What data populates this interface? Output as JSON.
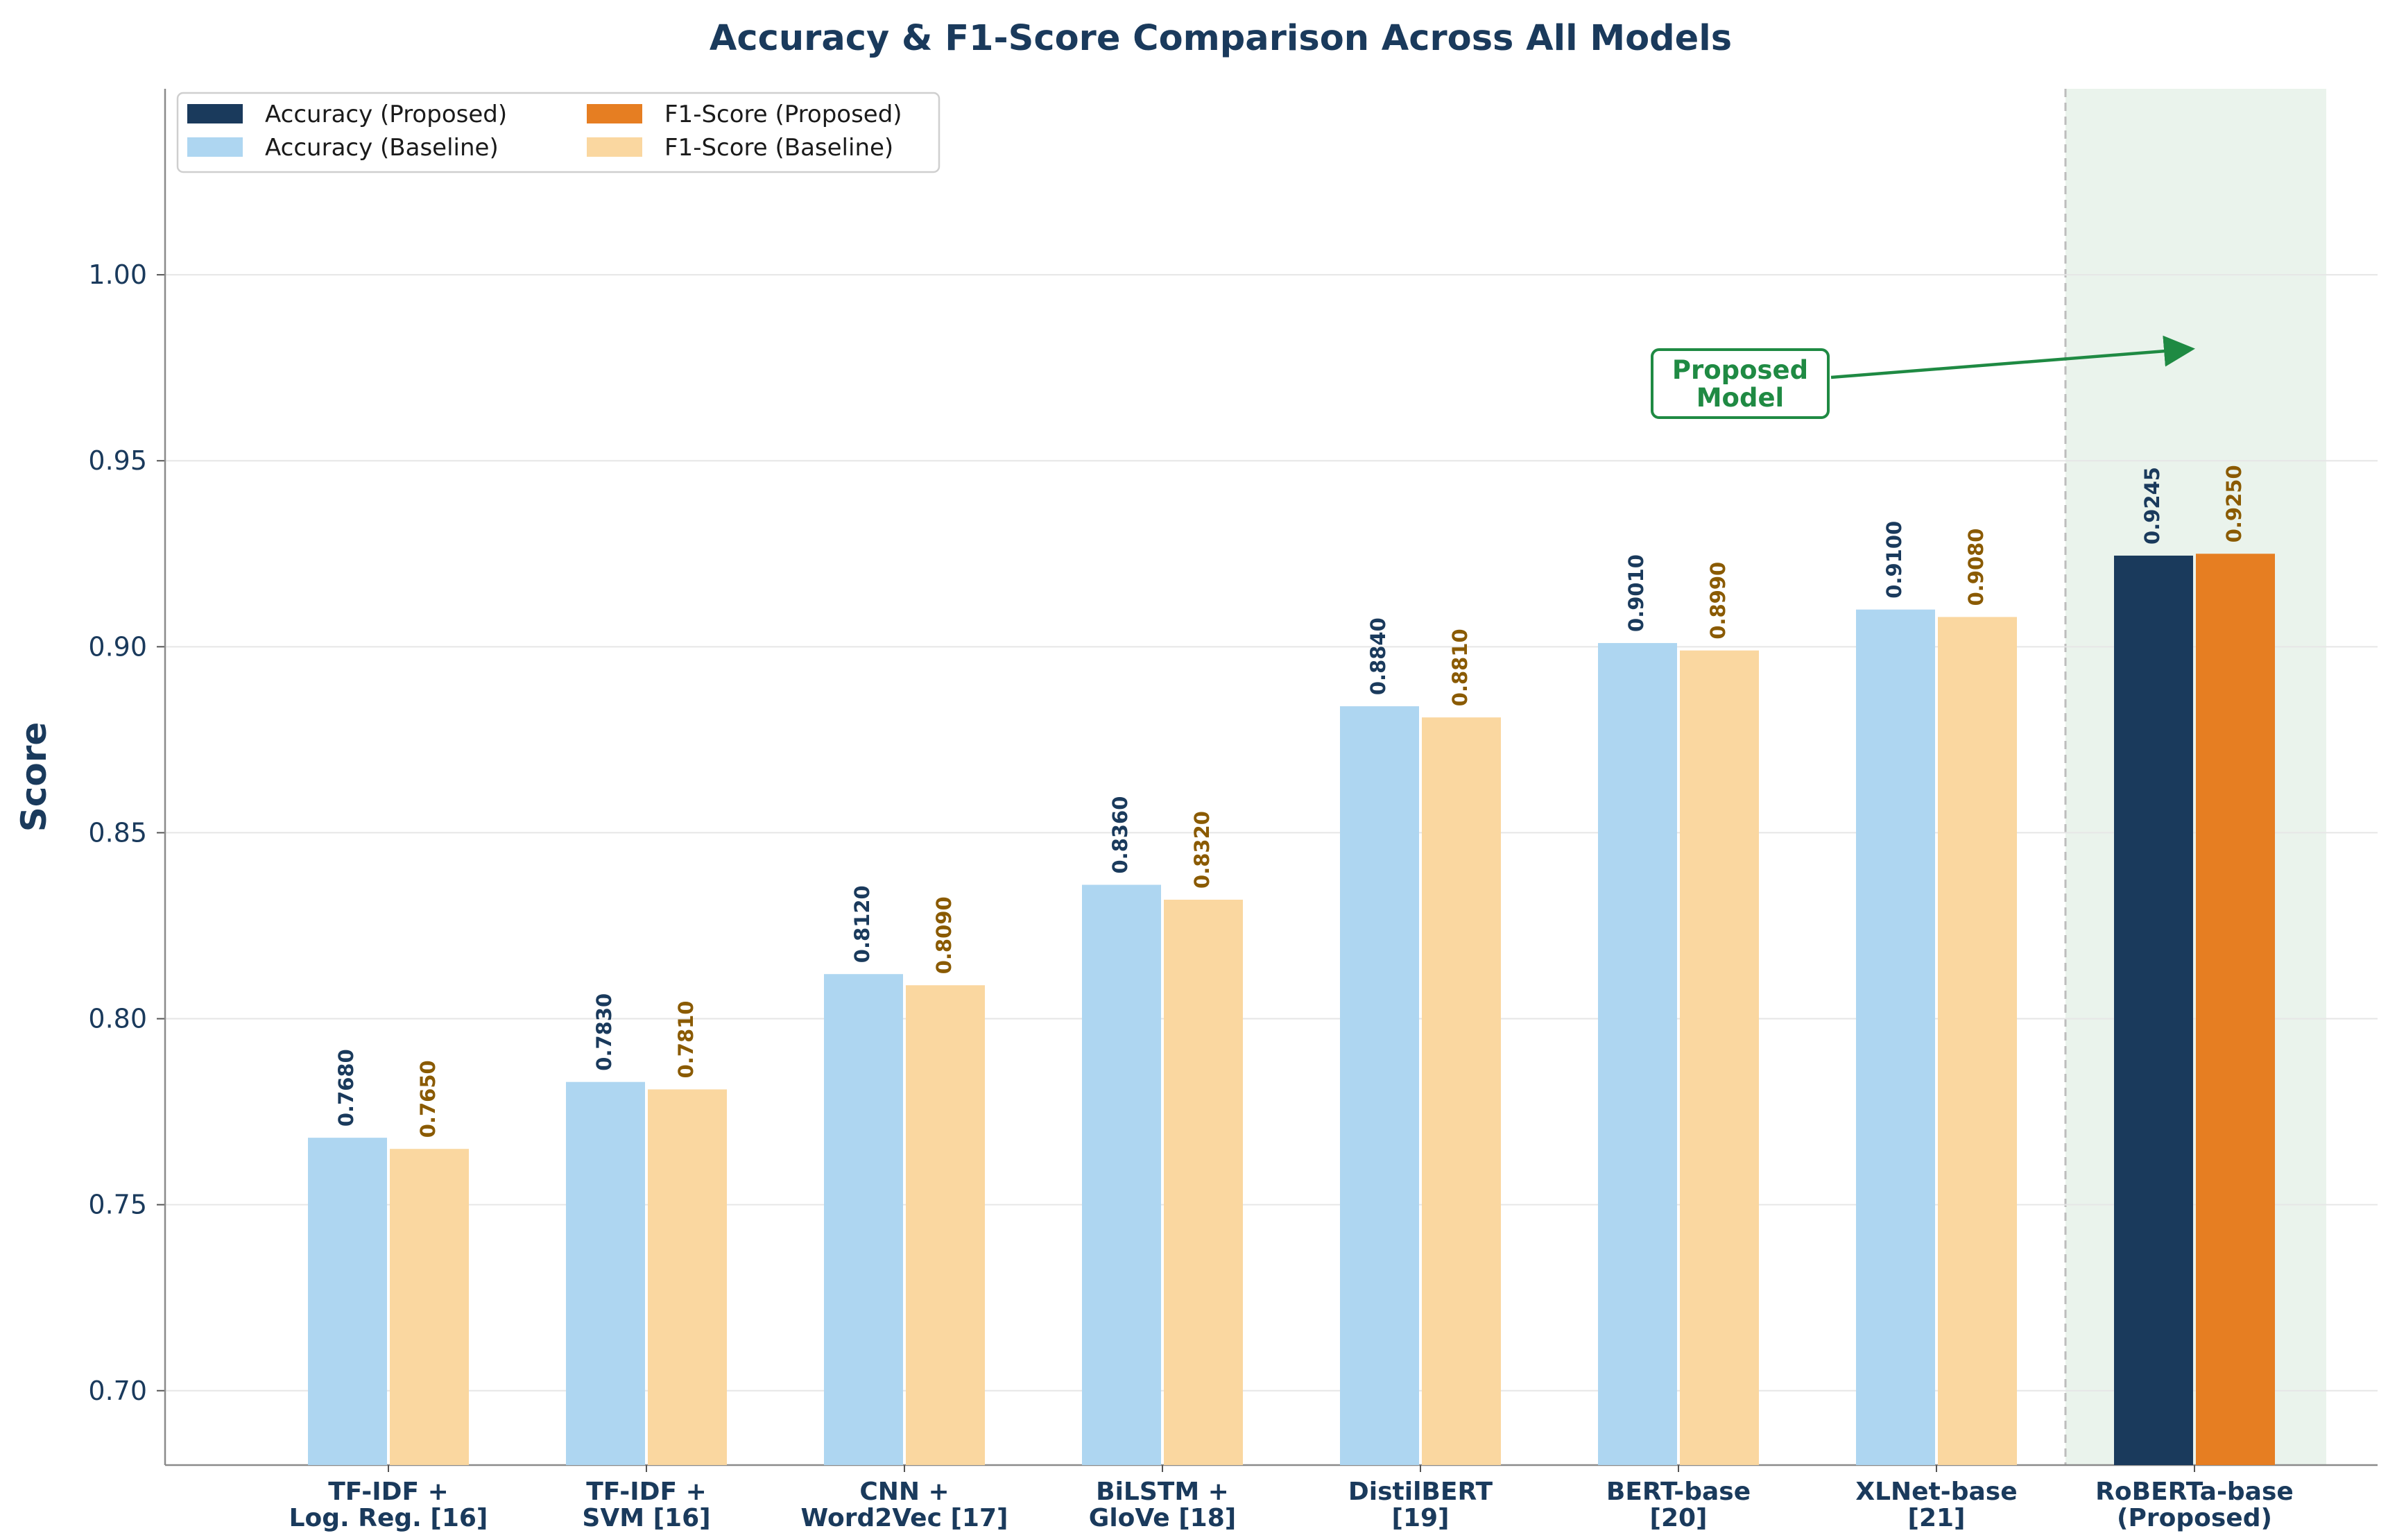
{
  "chart_data": {
    "type": "bar",
    "title": "Accuracy & F1-Score Comparison Across All Models",
    "xlabel": "",
    "ylabel": "Score",
    "ylim": [
      0.68,
      1.05
    ],
    "yticks": [
      "0.70",
      "0.75",
      "0.80",
      "0.85",
      "0.90",
      "0.95",
      "1.00"
    ],
    "grid": true,
    "legend_position": "top-left",
    "categories": [
      [
        "TF-IDF +",
        "Log. Reg. [16]"
      ],
      [
        "TF-IDF +",
        "SVM [16]"
      ],
      [
        "CNN +",
        "Word2Vec [17]"
      ],
      [
        "BiLSTM +",
        "GloVe [18]"
      ],
      [
        "DistilBERT",
        "[19]"
      ],
      [
        "BERT-base",
        "[20]"
      ],
      [
        "XLNet-base",
        "[21]"
      ],
      [
        "RoBERTa-base",
        "(Proposed)"
      ]
    ],
    "series": [
      {
        "name": "Accuracy",
        "values": [
          0.768,
          0.783,
          0.812,
          0.836,
          0.884,
          0.901,
          0.91,
          0.9245
        ],
        "labels": [
          "0.7680",
          "0.7830",
          "0.8120",
          "0.8360",
          "0.8840",
          "0.9010",
          "0.9100",
          "0.9245"
        ]
      },
      {
        "name": "F1-Score",
        "values": [
          0.765,
          0.781,
          0.809,
          0.832,
          0.881,
          0.899,
          0.908,
          0.925
        ],
        "labels": [
          "0.7650",
          "0.7810",
          "0.8090",
          "0.8320",
          "0.8810",
          "0.8990",
          "0.9080",
          "0.9250"
        ]
      }
    ],
    "proposed_index": 7,
    "legend": [
      {
        "label": "Accuracy (Proposed)",
        "color": "#1a3a5c"
      },
      {
        "label": "F1-Score (Proposed)",
        "color": "#e67e22"
      },
      {
        "label": "Accuracy (Baseline)",
        "color": "#aed6f1"
      },
      {
        "label": "F1-Score (Baseline)",
        "color": "#fad7a0"
      }
    ],
    "colors": {
      "accuracy_proposed": "#1a3a5c",
      "f1_proposed": "#e67e22",
      "accuracy_baseline": "#aed6f1",
      "f1_baseline": "#fad7a0",
      "accuracy_label": "#1a3a5c",
      "f1_label": "#8a5a00",
      "highlight_band": "#eaf3ec",
      "annotation": "#1f8a43"
    },
    "annotation": {
      "lines": [
        "Proposed",
        "Model"
      ],
      "target_value": 0.98
    }
  }
}
